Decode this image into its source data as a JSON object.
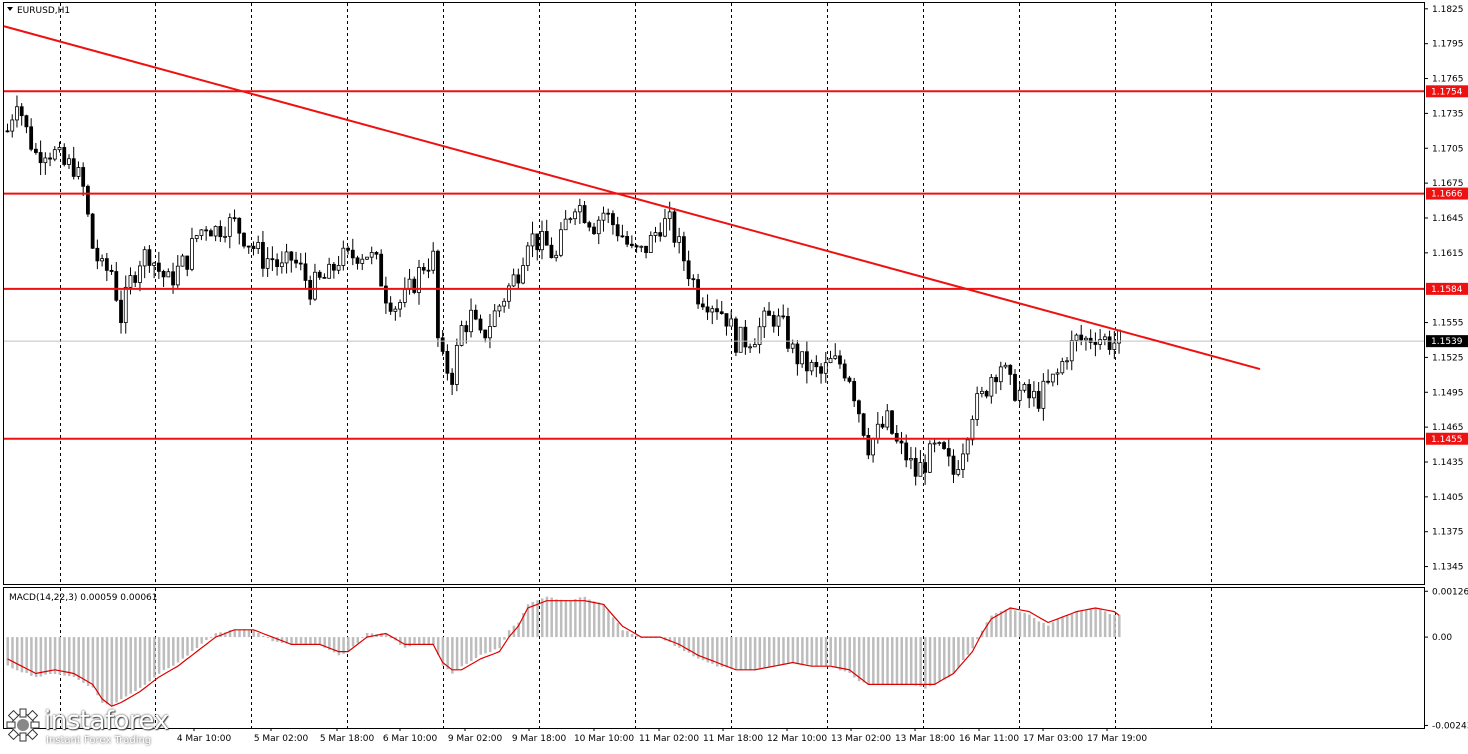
{
  "chart_title": "EURUSD,H1",
  "macd_label": "MACD(14,22,3) 0.00059 0.00061",
  "logo": {
    "brand": "instaforex",
    "tagline": "Instant Forex Trading"
  },
  "colors": {
    "level": "#ee1111",
    "trend": "#ee1111",
    "macd_signal": "#dd0000",
    "histogram": "#bdbdbd",
    "candle_bull": "#ffffff",
    "candle_bear": "#000000"
  },
  "chart_data": [
    {
      "type": "candlestick",
      "title": "EURUSD,H1",
      "ylim": [
        1.133,
        1.183
      ],
      "y_ticks": [
        "1.1825",
        "1.1795",
        "1.1765",
        "1.1735",
        "1.1705",
        "1.1675",
        "1.1645",
        "1.1615",
        "1.1555",
        "1.1525",
        "1.1495",
        "1.1465",
        "1.1435",
        "1.1405",
        "1.1375",
        "1.1345"
      ],
      "x_ticks": [
        "4 Mar 10:00",
        "5 Mar 02:00",
        "5 Mar 18:00",
        "6 Mar 10:00",
        "9 Mar 02:00",
        "9 Mar 18:00",
        "10 Mar 10:00",
        "11 Mar 02:00",
        "11 Mar 18:00",
        "12 Mar 10:00",
        "13 Mar 02:00",
        "13 Mar 18:00",
        "16 Mar 11:00",
        "17 Mar 03:00",
        "17 Mar 19:00"
      ],
      "current_price": "1.1539",
      "levels": [
        "1.1754",
        "1.1666",
        "1.1584",
        "1.1455"
      ],
      "trendline": {
        "start": 1.181,
        "end": 1.1515
      },
      "close_path": [
        [
          0,
          1.172
        ],
        [
          2,
          1.175
        ],
        [
          4,
          1.172
        ],
        [
          6,
          1.17
        ],
        [
          8,
          1.1705
        ],
        [
          10,
          1.17
        ],
        [
          12,
          1.169
        ],
        [
          14,
          1.169
        ],
        [
          16,
          1.167
        ],
        [
          18,
          1.162
        ],
        [
          20,
          1.16
        ],
        [
          22,
          1.16
        ],
        [
          24,
          1.156
        ],
        [
          26,
          1.159
        ],
        [
          28,
          1.161
        ],
        [
          30,
          1.1615
        ],
        [
          32,
          1.16
        ],
        [
          34,
          1.159
        ],
        [
          36,
          1.16
        ],
        [
          38,
          1.161
        ],
        [
          40,
          1.163
        ],
        [
          42,
          1.164
        ],
        [
          44,
          1.1635
        ],
        [
          46,
          1.164
        ],
        [
          48,
          1.164
        ],
        [
          50,
          1.163
        ],
        [
          52,
          1.162
        ],
        [
          54,
          1.161
        ],
        [
          56,
          1.161
        ],
        [
          58,
          1.16
        ],
        [
          60,
          1.161
        ],
        [
          62,
          1.16
        ],
        [
          64,
          1.1585
        ],
        [
          66,
          1.159
        ],
        [
          68,
          1.1595
        ],
        [
          70,
          1.161
        ],
        [
          72,
          1.161
        ],
        [
          74,
          1.1615
        ],
        [
          76,
          1.1615
        ],
        [
          78,
          1.1605
        ],
        [
          80,
          1.158
        ],
        [
          82,
          1.157
        ],
        [
          84,
          1.1575
        ],
        [
          86,
          1.159
        ],
        [
          88,
          1.1605
        ],
        [
          90,
          1.161
        ],
        [
          91,
          1.154
        ],
        [
          92,
          1.152
        ],
        [
          94,
          1.151
        ],
        [
          96,
          1.155
        ],
        [
          98,
          1.156
        ],
        [
          100,
          1.154
        ],
        [
          102,
          1.1555
        ],
        [
          104,
          1.157
        ],
        [
          106,
          1.1585
        ],
        [
          108,
          1.16
        ],
        [
          110,
          1.163
        ],
        [
          112,
          1.1625
        ],
        [
          114,
          1.162
        ],
        [
          116,
          1.161
        ],
        [
          118,
          1.164
        ],
        [
          120,
          1.166
        ],
        [
          122,
          1.165
        ],
        [
          124,
          1.164
        ],
        [
          126,
          1.165
        ],
        [
          128,
          1.164
        ],
        [
          130,
          1.163
        ],
        [
          132,
          1.1615
        ],
        [
          134,
          1.1615
        ],
        [
          136,
          1.1625
        ],
        [
          138,
          1.164
        ],
        [
          140,
          1.164
        ],
        [
          142,
          1.162
        ],
        [
          144,
          1.16
        ],
        [
          146,
          1.158
        ],
        [
          148,
          1.1575
        ],
        [
          150,
          1.157
        ],
        [
          152,
          1.156
        ],
        [
          154,
          1.154
        ],
        [
          156,
          1.154
        ],
        [
          158,
          1.1545
        ],
        [
          160,
          1.1555
        ],
        [
          162,
          1.156
        ],
        [
          164,
          1.155
        ],
        [
          166,
          1.153
        ],
        [
          168,
          1.152
        ],
        [
          170,
          1.1515
        ],
        [
          172,
          1.151
        ],
        [
          174,
          1.152
        ],
        [
          176,
          1.152
        ],
        [
          178,
          1.151
        ],
        [
          180,
          1.148
        ],
        [
          182,
          1.145
        ],
        [
          184,
          1.146
        ],
        [
          186,
          1.147
        ],
        [
          188,
          1.145
        ],
        [
          190,
          1.144
        ],
        [
          192,
          1.1425
        ],
        [
          194,
          1.1435
        ],
        [
          196,
          1.1445
        ],
        [
          198,
          1.144
        ],
        [
          200,
          1.1425
        ],
        [
          202,
          1.145
        ],
        [
          204,
          1.148
        ],
        [
          206,
          1.149
        ],
        [
          208,
          1.151
        ],
        [
          210,
          1.152
        ],
        [
          212,
          1.15
        ],
        [
          214,
          1.1495
        ],
        [
          216,
          1.149
        ],
        [
          218,
          1.149
        ],
        [
          220,
          1.15
        ],
        [
          222,
          1.151
        ],
        [
          224,
          1.153
        ],
        [
          226,
          1.154
        ],
        [
          228,
          1.154
        ],
        [
          230,
          1.1545
        ],
        [
          232,
          1.154
        ],
        [
          234,
          1.1538
        ],
        [
          235,
          1.1539
        ]
      ],
      "bar_count": 236
    },
    {
      "type": "macd",
      "title": "MACD(14,22,3) 0.00059 0.00061",
      "ylim": [
        -0.0025,
        0.00135
      ],
      "y_ticks": [
        "0.00126",
        "0.00",
        "-0.00243"
      ],
      "hist_path": [
        [
          0,
          -0.0008
        ],
        [
          6,
          -0.0011
        ],
        [
          10,
          -0.001
        ],
        [
          14,
          -0.0011
        ],
        [
          18,
          -0.0014
        ],
        [
          20,
          -0.0018
        ],
        [
          22,
          -0.0019
        ],
        [
          24,
          -0.0017
        ],
        [
          28,
          -0.0014
        ],
        [
          32,
          -0.001
        ],
        [
          36,
          -0.0007
        ],
        [
          40,
          -0.0003
        ],
        [
          44,
          0.0001
        ],
        [
          48,
          0.0002
        ],
        [
          52,
          0.0002
        ],
        [
          56,
          -0.0001
        ],
        [
          60,
          -0.0002
        ],
        [
          64,
          -0.0002
        ],
        [
          66,
          -0.0002
        ],
        [
          70,
          -0.0005
        ],
        [
          72,
          -0.0004
        ],
        [
          76,
          0.0001
        ],
        [
          80,
          0.0001
        ],
        [
          84,
          -0.0003
        ],
        [
          86,
          -0.0002
        ],
        [
          88,
          -0.0002
        ],
        [
          90,
          -0.0002
        ],
        [
          92,
          -0.0008
        ],
        [
          94,
          -0.001
        ],
        [
          96,
          -0.0008
        ],
        [
          100,
          -0.0005
        ],
        [
          104,
          -0.0003
        ],
        [
          106,
          0.0002
        ],
        [
          108,
          0.0004
        ],
        [
          110,
          0.0009
        ],
        [
          114,
          0.0011
        ],
        [
          118,
          0.001
        ],
        [
          122,
          0.0011
        ],
        [
          126,
          0.0009
        ],
        [
          130,
          0.0002
        ],
        [
          134,
          0.0
        ],
        [
          138,
          0.0
        ],
        [
          142,
          -0.0003
        ],
        [
          146,
          -0.0006
        ],
        [
          150,
          -0.0008
        ],
        [
          154,
          -0.0009
        ],
        [
          158,
          -0.0009
        ],
        [
          162,
          -0.0008
        ],
        [
          166,
          -0.0007
        ],
        [
          170,
          -0.0008
        ],
        [
          174,
          -0.0008
        ],
        [
          178,
          -0.001
        ],
        [
          180,
          -0.0012
        ],
        [
          182,
          -0.0013
        ],
        [
          186,
          -0.0013
        ],
        [
          190,
          -0.0013
        ],
        [
          194,
          -0.0014
        ],
        [
          196,
          -0.0013
        ],
        [
          200,
          -0.001
        ],
        [
          204,
          -0.0003
        ],
        [
          206,
          0.0002
        ],
        [
          208,
          0.0006
        ],
        [
          212,
          0.0008
        ],
        [
          216,
          0.0006
        ],
        [
          220,
          0.0003
        ],
        [
          222,
          0.0005
        ],
        [
          226,
          0.0007
        ],
        [
          230,
          0.0008
        ],
        [
          234,
          0.0006
        ],
        [
          235,
          0.0006
        ]
      ],
      "signal_path": [
        [
          0,
          -0.0006
        ],
        [
          6,
          -0.001
        ],
        [
          10,
          -0.0009
        ],
        [
          14,
          -0.001
        ],
        [
          18,
          -0.0013
        ],
        [
          20,
          -0.0017
        ],
        [
          22,
          -0.0019
        ],
        [
          24,
          -0.0018
        ],
        [
          28,
          -0.0015
        ],
        [
          32,
          -0.0011
        ],
        [
          36,
          -0.0008
        ],
        [
          40,
          -0.0004
        ],
        [
          44,
          0.0
        ],
        [
          48,
          0.0002
        ],
        [
          52,
          0.0002
        ],
        [
          56,
          0.0
        ],
        [
          60,
          -0.0002
        ],
        [
          64,
          -0.0002
        ],
        [
          66,
          -0.0002
        ],
        [
          70,
          -0.0004
        ],
        [
          72,
          -0.0004
        ],
        [
          76,
          0.0
        ],
        [
          80,
          0.0001
        ],
        [
          84,
          -0.0002
        ],
        [
          86,
          -0.0002
        ],
        [
          88,
          -0.0002
        ],
        [
          90,
          -0.0002
        ],
        [
          92,
          -0.0007
        ],
        [
          94,
          -0.0009
        ],
        [
          96,
          -0.0009
        ],
        [
          100,
          -0.0006
        ],
        [
          104,
          -0.0004
        ],
        [
          106,
          0.0
        ],
        [
          108,
          0.0003
        ],
        [
          110,
          0.0008
        ],
        [
          114,
          0.001
        ],
        [
          118,
          0.001
        ],
        [
          122,
          0.001
        ],
        [
          126,
          0.0009
        ],
        [
          130,
          0.0003
        ],
        [
          134,
          0.0
        ],
        [
          138,
          0.0
        ],
        [
          142,
          -0.0002
        ],
        [
          146,
          -0.0005
        ],
        [
          150,
          -0.0007
        ],
        [
          154,
          -0.0009
        ],
        [
          158,
          -0.0009
        ],
        [
          162,
          -0.0008
        ],
        [
          166,
          -0.0007
        ],
        [
          170,
          -0.0008
        ],
        [
          174,
          -0.0008
        ],
        [
          178,
          -0.0009
        ],
        [
          180,
          -0.0011
        ],
        [
          182,
          -0.0013
        ],
        [
          186,
          -0.0013
        ],
        [
          190,
          -0.0013
        ],
        [
          194,
          -0.0013
        ],
        [
          196,
          -0.0013
        ],
        [
          200,
          -0.001
        ],
        [
          204,
          -0.0004
        ],
        [
          206,
          0.0001
        ],
        [
          208,
          0.0005
        ],
        [
          212,
          0.0008
        ],
        [
          216,
          0.0007
        ],
        [
          220,
          0.0004
        ],
        [
          222,
          0.0005
        ],
        [
          226,
          0.0007
        ],
        [
          230,
          0.0008
        ],
        [
          234,
          0.0007
        ],
        [
          235,
          0.0006
        ]
      ]
    }
  ]
}
